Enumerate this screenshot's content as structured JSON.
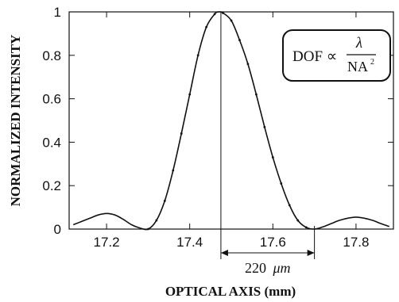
{
  "chart_data": {
    "type": "line",
    "xlabel": "OPTICAL AXIS (mm)",
    "ylabel": "NORMALIZED INTENSITY",
    "xlim": [
      17.11,
      17.89
    ],
    "ylim": [
      0,
      1
    ],
    "x_ticks": [
      "17.2",
      "17.4",
      "17.6",
      "17.8"
    ],
    "y_ticks": [
      "0",
      "0.2",
      "0.4",
      "0.6",
      "0.8",
      "1"
    ],
    "grid": false,
    "series": [
      {
        "style": "solid-line",
        "x": [
          17.12,
          17.14,
          17.16,
          17.18,
          17.2,
          17.22,
          17.24,
          17.26,
          17.28,
          17.3,
          17.32,
          17.34,
          17.36,
          17.38,
          17.4,
          17.42,
          17.44,
          17.46,
          17.47,
          17.48,
          17.5,
          17.52,
          17.54,
          17.56,
          17.58,
          17.6,
          17.62,
          17.64,
          17.66,
          17.68,
          17.7,
          17.72,
          17.74,
          17.76,
          17.78,
          17.8,
          17.82,
          17.84,
          17.86,
          17.88
        ],
        "y": [
          0.02,
          0.035,
          0.05,
          0.065,
          0.072,
          0.065,
          0.045,
          0.02,
          0.005,
          0.0,
          0.04,
          0.13,
          0.27,
          0.44,
          0.62,
          0.8,
          0.93,
          0.99,
          1.0,
          0.995,
          0.96,
          0.87,
          0.76,
          0.62,
          0.47,
          0.33,
          0.21,
          0.11,
          0.04,
          0.008,
          0.0,
          0.01,
          0.025,
          0.04,
          0.05,
          0.055,
          0.05,
          0.04,
          0.025,
          0.012
        ]
      },
      {
        "style": "dots",
        "x": [
          17.3,
          17.32,
          17.34,
          17.36,
          17.38,
          17.4,
          17.42,
          17.44,
          17.46,
          17.48,
          17.5,
          17.52,
          17.54,
          17.56,
          17.58,
          17.6,
          17.62,
          17.64,
          17.66,
          17.68
        ],
        "y": [
          0.0,
          0.04,
          0.13,
          0.27,
          0.44,
          0.62,
          0.8,
          0.93,
          0.99,
          0.995,
          0.96,
          0.87,
          0.76,
          0.62,
          0.47,
          0.33,
          0.21,
          0.11,
          0.04,
          0.008
        ]
      }
    ],
    "peak_marker_x": 17.475,
    "dof_span": {
      "x_start": 17.475,
      "x_end": 17.7,
      "label_value": "220",
      "label_unit": "μm"
    },
    "formula": {
      "lhs": "DOF ∝",
      "numerator": "λ",
      "denominator": "NA",
      "exponent": "2"
    }
  }
}
